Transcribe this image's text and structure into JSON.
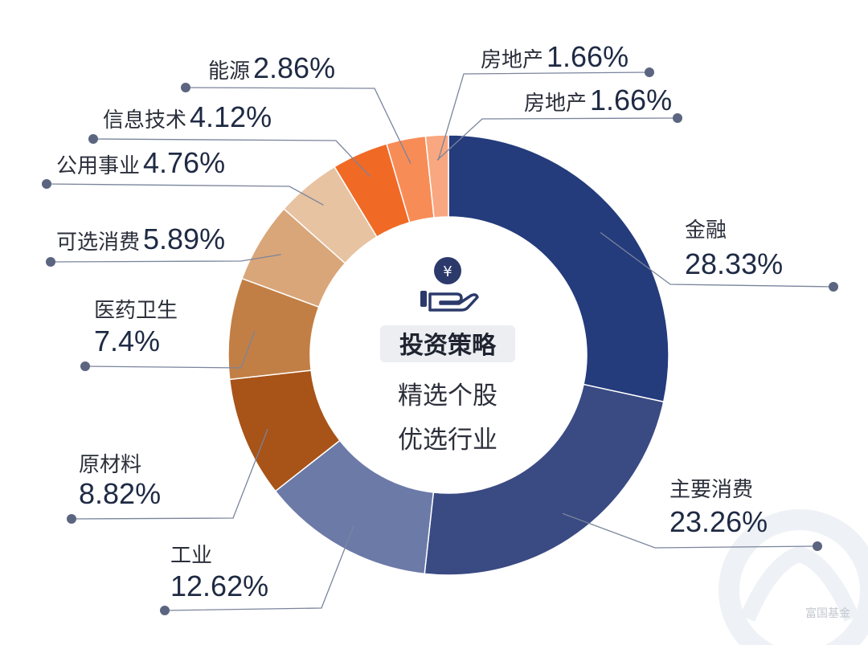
{
  "chart_data": {
    "type": "pie",
    "variant": "donut",
    "slices": [
      {
        "label": "金融",
        "value": 28.33,
        "display": "28.33%",
        "color": "#243b7c"
      },
      {
        "label": "主要消费",
        "value": 23.26,
        "display": "23.26%",
        "color": "#3a4a83"
      },
      {
        "label": "工业",
        "value": 12.62,
        "display": "12.62%",
        "color": "#6c7aa8"
      },
      {
        "label": "原材料",
        "value": 8.82,
        "display": "8.82%",
        "color": "#a85318"
      },
      {
        "label": "医药卫生",
        "value": 7.4,
        "display": "7.4%",
        "color": "#c27f45"
      },
      {
        "label": "可选消费",
        "value": 5.89,
        "display": "5.89%",
        "color": "#d9a679"
      },
      {
        "label": "公用事业",
        "value": 4.76,
        "display": "4.76%",
        "color": "#e7c3a2"
      },
      {
        "label": "信息技术",
        "value": 4.12,
        "display": "4.12%",
        "color": "#f06a26"
      },
      {
        "label": "能源",
        "value": 2.86,
        "display": "2.86%",
        "color": "#f88c57"
      },
      {
        "label": "房地产",
        "value": 1.66,
        "display": "1.66%",
        "color": "#f9a780"
      }
    ],
    "extra_label": {
      "label": "房地产",
      "display": "1.66%"
    }
  },
  "center": {
    "title": "投资策略",
    "line1": "精选个股",
    "line2": "优选行业",
    "icon": "money-hand-icon"
  },
  "watermark": {
    "text": "富国基金",
    "icon": "fund-logo-icon"
  },
  "colors": {
    "leader": "#7a849c",
    "dot": "#5b6580",
    "badge_bg": "#eceef2",
    "icon": "#2c3a6b"
  }
}
